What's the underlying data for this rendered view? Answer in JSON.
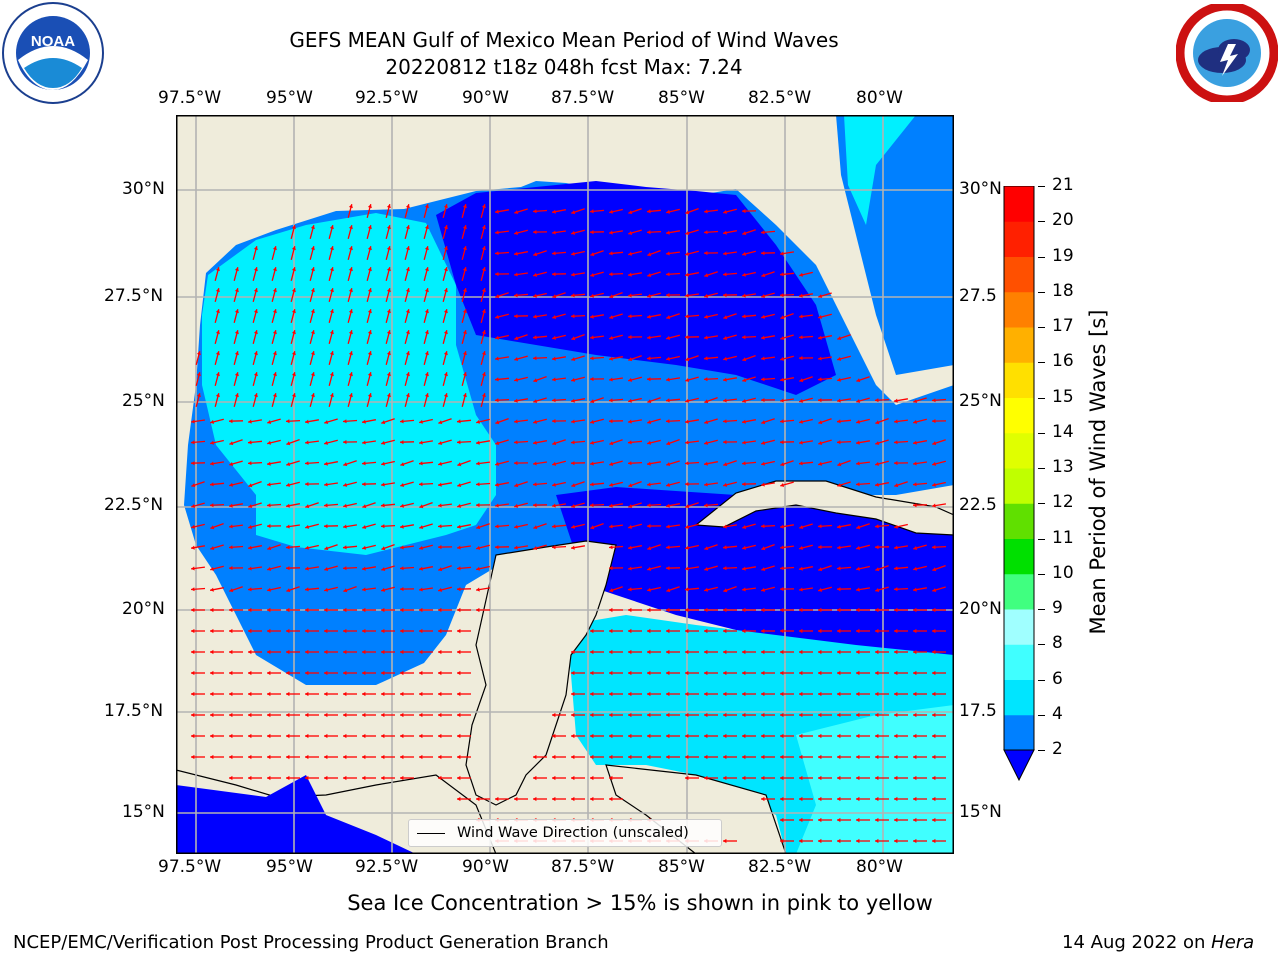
{
  "title": {
    "line1": "GEFS MEAN Gulf of Mexico Mean Period of Wind Waves",
    "line2": "20220812 t18z 048h fcst   Max: 7.24"
  },
  "logos": {
    "left": {
      "name": "noaa-logo",
      "text": "NOAA",
      "ring_text": "NATIONAL OCEANIC AND ATMOSPHERIC ADMINISTRATION · U.S. DEPARTMENT OF COMMERCE"
    },
    "right": {
      "name": "nws-logo",
      "ring_text": "NATIONAL WEATHER SERVICE"
    }
  },
  "map": {
    "lon_labels": [
      "97.5°W",
      "95°W",
      "92.5°W",
      "90°W",
      "87.5°W",
      "85°W",
      "82.5°W",
      "80°W"
    ],
    "lat_labels_left": [
      "30°N",
      "27.5°N",
      "25°N",
      "22.5°N",
      "20°N",
      "17.5°N",
      "15°N"
    ],
    "lat_labels_right": [
      "30°N",
      "27.5",
      "25°N",
      "22.5",
      "20°N",
      "17.5",
      "15°N"
    ],
    "legend": "Wind Wave Direction (unscaled)",
    "colors": {
      "land": "#efecdb",
      "grid": "#b3b3b3",
      "arrow": "#ff0000"
    }
  },
  "colorbar": {
    "label": "Mean Period of Wind Waves [s]",
    "ticks": [
      "2",
      "4",
      "6",
      "8",
      "9",
      "10",
      "11",
      "12",
      "13",
      "14",
      "15",
      "16",
      "17",
      "18",
      "19",
      "20",
      "21"
    ],
    "colors": [
      "#0000ff",
      "#0080ff",
      "#00e5ff",
      "#40ffff",
      "#a0ffff",
      "#40ff80",
      "#00e000",
      "#60e000",
      "#c0ff00",
      "#e0ff00",
      "#ffff00",
      "#ffe000",
      "#ffb000",
      "#ff8000",
      "#ff5000",
      "#ff2000",
      "#ff0000"
    ],
    "extend_color": "#0000ff"
  },
  "note": "Sea Ice Concentration > 15% is shown in pink to yellow",
  "footer": {
    "left": "NCEP/EMC/Verification Post Processing Product Generation Branch",
    "right_prefix": "14 Aug 2022 on ",
    "right_host": "Hera"
  }
}
